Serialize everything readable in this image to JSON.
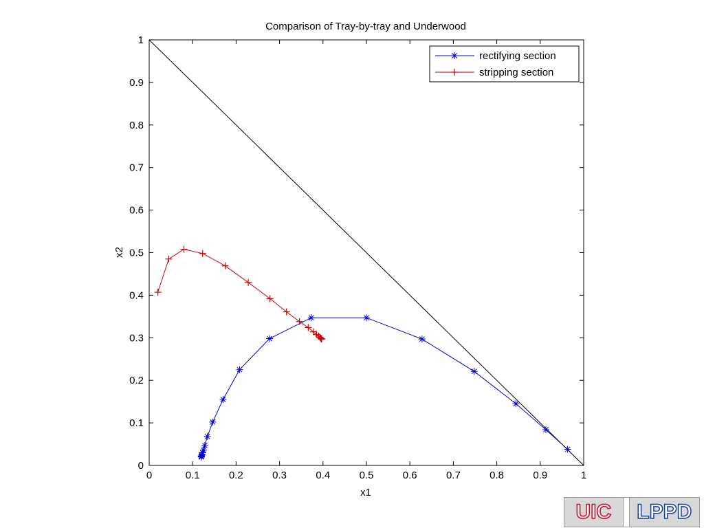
{
  "chart_data": {
    "type": "line",
    "title": "Comparison of Tray-by-tray and Underwood",
    "xlabel": "x1",
    "ylabel": "x2",
    "xlim": [
      0,
      1
    ],
    "ylim": [
      0,
      1
    ],
    "xticks": [
      "0",
      "0.1",
      "0.2",
      "0.3",
      "0.4",
      "0.5",
      "0.6",
      "0.7",
      "0.8",
      "0.9",
      "1"
    ],
    "yticks": [
      "0",
      "0.1",
      "0.2",
      "0.3",
      "0.4",
      "0.5",
      "0.6",
      "0.7",
      "0.8",
      "0.9",
      "1"
    ],
    "grid": false,
    "legend_position": "top-right",
    "reference_line": {
      "x": [
        0,
        1
      ],
      "y": [
        1,
        0
      ],
      "color": "#000000"
    },
    "series": [
      {
        "name": "rectifying section",
        "color": "#0000cc",
        "marker": "star",
        "x": [
          0.963,
          0.913,
          0.844,
          0.748,
          0.628,
          0.5,
          0.373,
          0.277,
          0.208,
          0.17,
          0.146,
          0.134,
          0.128,
          0.125,
          0.123,
          0.122,
          0.121,
          0.12,
          0.12,
          0.12
        ],
        "y": [
          0.038,
          0.084,
          0.145,
          0.221,
          0.297,
          0.347,
          0.347,
          0.298,
          0.225,
          0.155,
          0.102,
          0.068,
          0.047,
          0.036,
          0.03,
          0.026,
          0.024,
          0.022,
          0.021,
          0.02
        ]
      },
      {
        "name": "stripping section",
        "color": "#cc0000",
        "marker": "plus",
        "x": [
          0.02,
          0.045,
          0.08,
          0.123,
          0.175,
          0.228,
          0.278,
          0.316,
          0.346,
          0.366,
          0.378,
          0.385,
          0.39,
          0.393,
          0.395,
          0.396,
          0.397,
          0.397
        ],
        "y": [
          0.407,
          0.485,
          0.508,
          0.498,
          0.469,
          0.43,
          0.392,
          0.361,
          0.338,
          0.324,
          0.314,
          0.308,
          0.304,
          0.301,
          0.299,
          0.298,
          0.297,
          0.297
        ]
      }
    ]
  },
  "logo": {
    "left": "UIC",
    "right": "LPPD"
  }
}
